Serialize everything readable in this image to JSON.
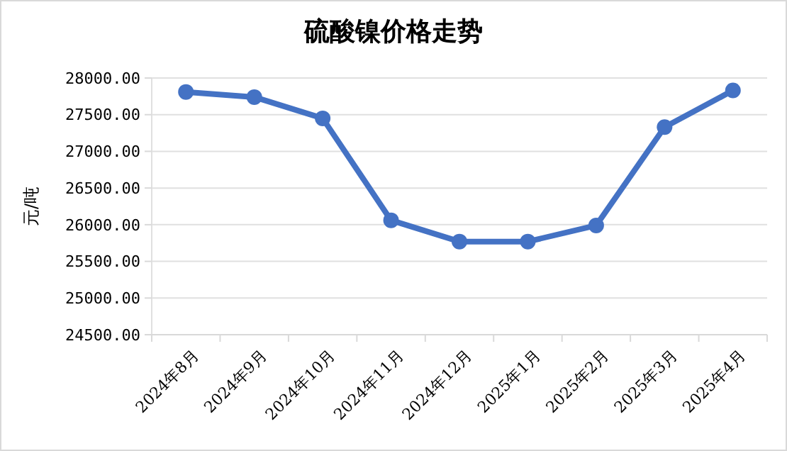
{
  "chart_data": {
    "type": "line",
    "title": "硫酸镍价格走势",
    "ylabel": "元/吨",
    "categories": [
      "2024年8月",
      "2024年9月",
      "2024年10月",
      "2024年11月",
      "2024年12月",
      "2025年1月",
      "2025年2月",
      "2025年3月",
      "2025年4月"
    ],
    "series": [
      {
        "color": "#4472c4",
        "values": [
          27810,
          27740,
          27450,
          26060,
          25770,
          25770,
          25990,
          27330,
          27830
        ]
      }
    ],
    "ylim": [
      24500,
      28000
    ],
    "yticks": [
      {
        "value": 24500,
        "label": "24500.00"
      },
      {
        "value": 25000,
        "label": "25000.00"
      },
      {
        "value": 25500,
        "label": "25500.00"
      },
      {
        "value": 26000,
        "label": "26000.00"
      },
      {
        "value": 26500,
        "label": "26500.00"
      },
      {
        "value": 27000,
        "label": "27000.00"
      },
      {
        "value": 27500,
        "label": "27500.00"
      },
      {
        "value": 28000,
        "label": "28000.00"
      }
    ],
    "grid": "y",
    "marker": "circle",
    "line_style": "solid"
  }
}
